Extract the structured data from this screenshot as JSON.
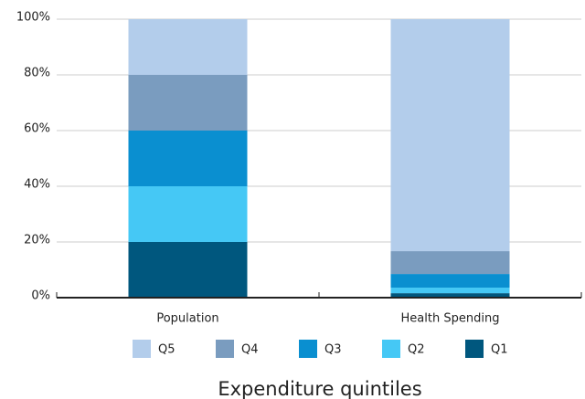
{
  "chart_data": {
    "type": "stacked-bar",
    "x_label": "Expenditure quintiles",
    "categories": [
      "Population",
      "Health Spending"
    ],
    "series": [
      {
        "name": "Q1",
        "color": "#00577e",
        "values": [
          20,
          1.6
        ]
      },
      {
        "name": "Q2",
        "color": "#45c8f5",
        "values": [
          20,
          2.0
        ]
      },
      {
        "name": "Q3",
        "color": "#0a8fd0",
        "values": [
          20,
          4.9
        ]
      },
      {
        "name": "Q4",
        "color": "#7a9cbf",
        "values": [
          20,
          8.2
        ]
      },
      {
        "name": "Q5",
        "color": "#b3cdeb",
        "values": [
          20,
          83.3
        ]
      }
    ],
    "ylim": [
      0,
      100
    ],
    "yticks": [
      {
        "value": 0,
        "label": "0%"
      },
      {
        "value": 20,
        "label": "20%"
      },
      {
        "value": 40,
        "label": "40%"
      },
      {
        "value": 60,
        "label": "60%"
      },
      {
        "value": 80,
        "label": "80%"
      },
      {
        "value": 100,
        "label": "100%"
      }
    ],
    "grid": true
  }
}
